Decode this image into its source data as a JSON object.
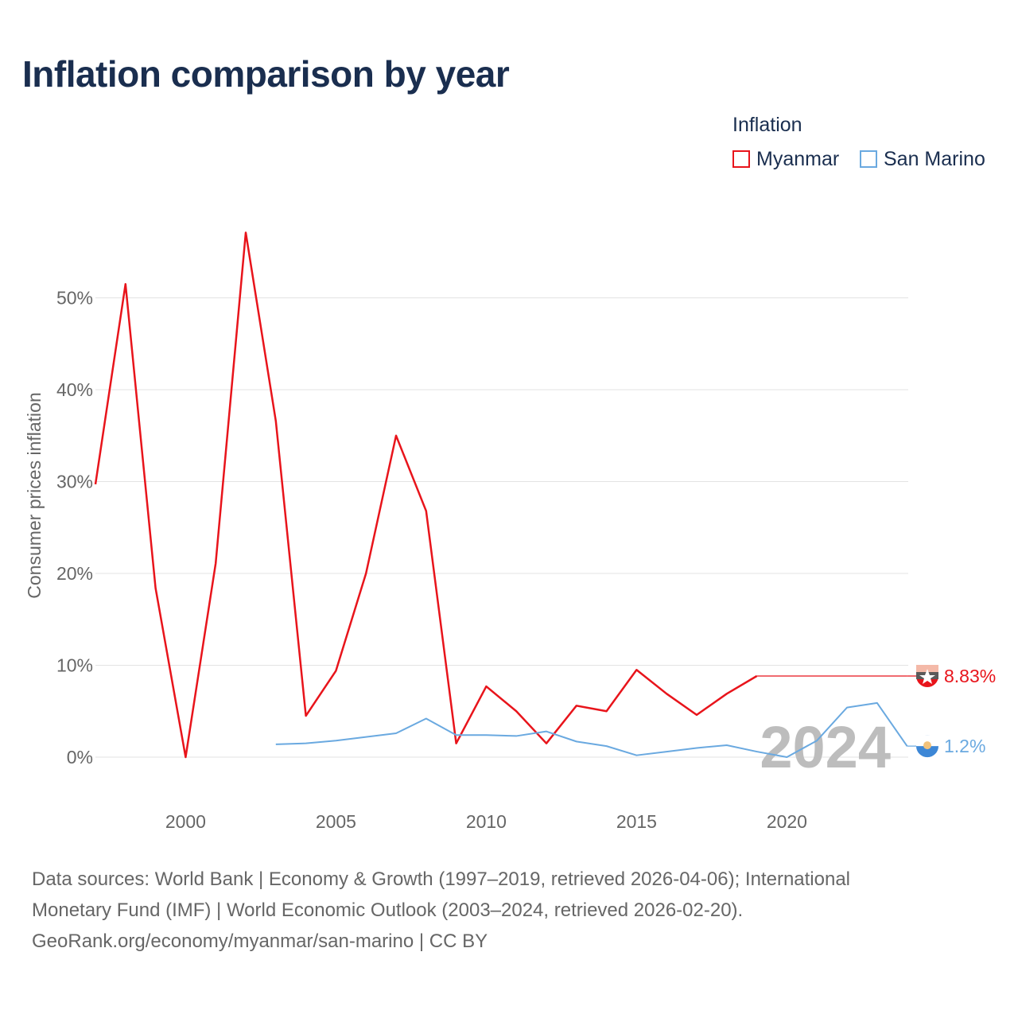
{
  "title": "Inflation comparison by year",
  "legend": {
    "title": "Inflation",
    "items": [
      {
        "label": "Myanmar",
        "color": "#e8141b"
      },
      {
        "label": "San Marino",
        "color": "#6aa9e0"
      }
    ]
  },
  "chart_data": {
    "type": "line",
    "title": "Inflation comparison by year",
    "xlabel": "",
    "ylabel": "Consumer prices inflation",
    "x_ticks": [
      2000,
      2005,
      2010,
      2015,
      2020
    ],
    "y_ticks": [
      0,
      10,
      20,
      30,
      40,
      50
    ],
    "y_tick_labels": [
      "0%",
      "10%",
      "20%",
      "30%",
      "40%",
      "50%"
    ],
    "xlim": [
      1997,
      2024.3
    ],
    "ylim": [
      -5,
      60
    ],
    "year_watermark": "2024",
    "series": [
      {
        "name": "Myanmar",
        "color": "#e8141b",
        "points": [
          [
            1997,
            29.7
          ],
          [
            1998,
            51.5
          ],
          [
            1999,
            18.4
          ],
          [
            2000,
            0.0
          ],
          [
            2001,
            21.1
          ],
          [
            2002,
            57.1
          ],
          [
            2003,
            36.6
          ],
          [
            2004,
            4.5
          ],
          [
            2005,
            9.4
          ],
          [
            2006,
            20.0
          ],
          [
            2007,
            35.0
          ],
          [
            2008,
            26.8
          ],
          [
            2009,
            1.5
          ],
          [
            2010,
            7.7
          ],
          [
            2011,
            5.0
          ],
          [
            2012,
            1.5
          ],
          [
            2013,
            5.6
          ],
          [
            2014,
            5.0
          ],
          [
            2015,
            9.5
          ],
          [
            2016,
            6.9
          ],
          [
            2017,
            4.6
          ],
          [
            2018,
            6.9
          ],
          [
            2019,
            8.83
          ]
        ],
        "carry_forward_to": 2024,
        "end_label": "8.83%"
      },
      {
        "name": "San Marino",
        "color": "#6aa9e0",
        "points": [
          [
            2003,
            1.4
          ],
          [
            2004,
            1.5
          ],
          [
            2005,
            1.8
          ],
          [
            2006,
            2.2
          ],
          [
            2007,
            2.6
          ],
          [
            2008,
            4.2
          ],
          [
            2009,
            2.4
          ],
          [
            2010,
            2.4
          ],
          [
            2011,
            2.3
          ],
          [
            2012,
            2.8
          ],
          [
            2013,
            1.7
          ],
          [
            2014,
            1.2
          ],
          [
            2015,
            0.2
          ],
          [
            2016,
            0.6
          ],
          [
            2017,
            1.0
          ],
          [
            2018,
            1.3
          ],
          [
            2019,
            0.6
          ],
          [
            2020,
            0.0
          ],
          [
            2021,
            1.8
          ],
          [
            2022,
            5.4
          ],
          [
            2023,
            5.9
          ],
          [
            2024,
            1.2
          ]
        ],
        "end_label": "1.2%"
      }
    ]
  },
  "footer": {
    "line1": "Data sources: World Bank | Economy & Growth (1997–2019, retrieved 2026-04-06); International",
    "line2": "Monetary Fund (IMF) | World Economic Outlook (2003–2024, retrieved 2026-02-20).",
    "line3": "GeoRank.org/economy/myanmar/san-marino | CC BY"
  }
}
